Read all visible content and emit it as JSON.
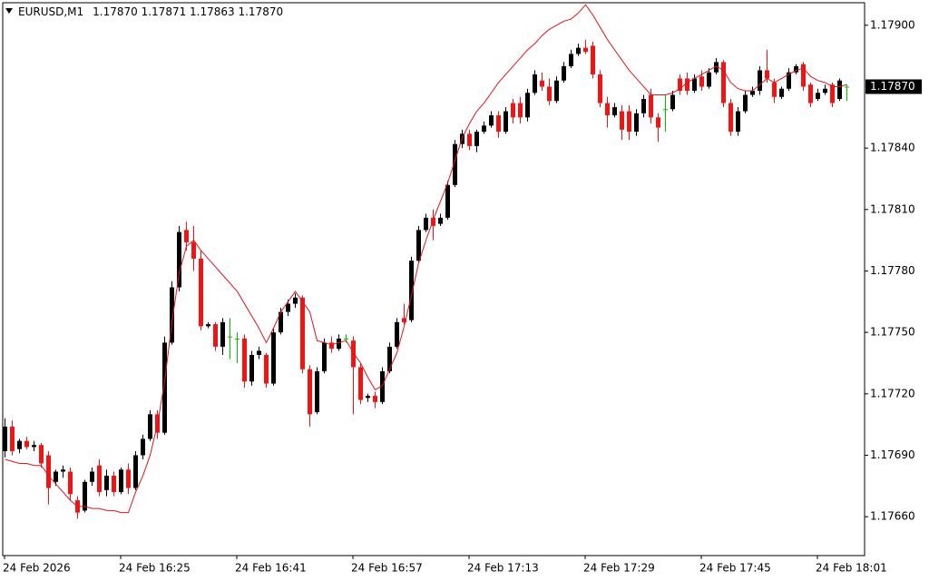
{
  "chart_data": {
    "type": "candlestick",
    "title": "EURUSD,M1",
    "info": "1.17870 1.17871 1.17863 1.17870",
    "categories": [
      "24 Feb 2026",
      null,
      null,
      null,
      null,
      null,
      null,
      null,
      null,
      null,
      null,
      null,
      null,
      null,
      null,
      null,
      "24 Feb 16:25",
      null,
      null,
      null,
      null,
      null,
      null,
      null,
      null,
      null,
      null,
      null,
      null,
      null,
      null,
      null,
      "24 Feb 16:41",
      null,
      null,
      null,
      null,
      null,
      null,
      null,
      null,
      null,
      null,
      null,
      null,
      null,
      null,
      null,
      "24 Feb 16:57",
      null,
      null,
      null,
      null,
      null,
      null,
      null,
      null,
      null,
      null,
      null,
      null,
      null,
      null,
      null,
      "24 Feb 17:13",
      null,
      null,
      null,
      null,
      null,
      null,
      null,
      null,
      null,
      null,
      null,
      null,
      null,
      null,
      null,
      "24 Feb 17:29",
      null,
      null,
      null,
      null,
      null,
      null,
      null,
      null,
      null,
      null,
      null,
      null,
      null,
      null,
      null,
      "24 Feb 17:45",
      null,
      null,
      null,
      null,
      null,
      null,
      null,
      null,
      null,
      null,
      null,
      null,
      null,
      null,
      null,
      "24 Feb 18:01",
      null,
      null,
      null,
      null
    ],
    "open": [
      1.17692,
      1.17704,
      1.17693,
      1.17697,
      1.17694,
      1.17695,
      1.1769,
      1.17677,
      1.17682,
      1.17682,
      1.17668,
      1.17663,
      1.17677,
      1.17685,
      1.17673,
      1.1768,
      1.17672,
      1.17683,
      1.17674,
      1.1769,
      1.17698,
      1.1771,
      1.17701,
      1.17745,
      1.17772,
      1.178,
      1.17794,
      1.17786,
      1.17753,
      1.17754,
      1.17743,
      1.17748,
      1.17747,
      1.17747,
      1.17726,
      1.17739,
      1.17739,
      1.17725,
      1.1775,
      1.1776,
      1.17764,
      1.17767,
      1.17732,
      1.17711,
      1.17731,
      1.17745,
      1.17742,
      1.17747,
      1.17746,
      1.17733,
      1.17718,
      1.17719,
      1.17716,
      1.17731,
      1.17743,
      1.17757,
      1.17756,
      1.17785,
      1.178,
      1.17806,
      1.17803,
      1.17806,
      1.17822,
      1.17842,
      1.17847,
      1.17841,
      1.17848,
      1.17851,
      1.17856,
      1.17848,
      1.17862,
      1.17862,
      1.17855,
      1.17867,
      1.17873,
      1.1787,
      1.17863,
      1.17873,
      1.1788,
      1.17886,
      1.17889,
      1.1789,
      1.17876,
      1.17862,
      1.17856,
      1.17858,
      1.17858,
      1.17848,
      1.17857,
      1.17866,
      1.17855,
      1.17859,
      1.17859,
      1.17874,
      1.17874,
      1.17868,
      1.17875,
      1.1787,
      1.17877,
      1.17882,
      1.17862,
      1.17848,
      1.17858,
      1.17866,
      1.17868,
      1.17878,
      1.17872,
      1.17865,
      1.17869,
      1.17877,
      1.17881,
      1.17871,
      1.17864,
      1.17867,
      1.17871,
      1.17864,
      1.1787
    ],
    "high": [
      1.17708,
      1.17707,
      1.17698,
      1.17699,
      1.17697,
      1.17696,
      1.17692,
      1.17683,
      1.17685,
      1.17684,
      1.1767,
      1.17678,
      1.17684,
      1.17688,
      1.17683,
      1.17682,
      1.17684,
      1.17686,
      1.17692,
      1.177,
      1.17712,
      1.17712,
      1.17748,
      1.17775,
      1.17802,
      1.17804,
      1.17802,
      1.1779,
      1.17755,
      1.17755,
      1.17757,
      1.17757,
      1.1775,
      1.17749,
      1.17741,
      1.17743,
      1.1774,
      1.17752,
      1.17762,
      1.17766,
      1.17769,
      1.17768,
      1.17734,
      1.17733,
      1.17747,
      1.17748,
      1.17749,
      1.17749,
      1.17748,
      1.17735,
      1.1772,
      1.17721,
      1.17733,
      1.17745,
      1.17757,
      1.17764,
      1.17787,
      1.17802,
      1.17808,
      1.1781,
      1.17808,
      1.17824,
      1.17844,
      1.17849,
      1.17849,
      1.17849,
      1.17853,
      1.17858,
      1.17858,
      1.1786,
      1.17864,
      1.17865,
      1.17869,
      1.17878,
      1.17877,
      1.17874,
      1.17875,
      1.17882,
      1.17888,
      1.17891,
      1.17893,
      1.17892,
      1.17878,
      1.17865,
      1.17862,
      1.17861,
      1.17861,
      1.17859,
      1.17866,
      1.17869,
      1.17857,
      1.17866,
      1.17868,
      1.17876,
      1.17877,
      1.17876,
      1.17878,
      1.17879,
      1.17884,
      1.17883,
      1.17864,
      1.1786,
      1.17868,
      1.1787,
      1.1788,
      1.17888,
      1.17874,
      1.1787,
      1.17879,
      1.17881,
      1.17882,
      1.17872,
      1.17869,
      1.17871,
      1.17872,
      1.17874,
      1.17871
    ],
    "low": [
      1.17689,
      1.1769,
      1.17691,
      1.17693,
      1.17692,
      1.17684,
      1.17666,
      1.17675,
      1.17679,
      1.17668,
      1.17659,
      1.17662,
      1.17675,
      1.1767,
      1.1767,
      1.1767,
      1.17671,
      1.17671,
      1.17673,
      1.17688,
      1.17697,
      1.17698,
      1.177,
      1.17744,
      1.1777,
      1.1779,
      1.1778,
      1.17751,
      1.17752,
      1.17741,
      1.17739,
      1.17737,
      1.17735,
      1.17723,
      1.17724,
      1.17737,
      1.17723,
      1.17724,
      1.17749,
      1.17758,
      1.17762,
      1.1773,
      1.17704,
      1.1771,
      1.1773,
      1.1774,
      1.17741,
      1.17745,
      1.1771,
      1.17715,
      1.17716,
      1.17713,
      1.17715,
      1.1773,
      1.17742,
      1.17754,
      1.17755,
      1.17784,
      1.17799,
      1.17795,
      1.17802,
      1.17805,
      1.17821,
      1.1784,
      1.17839,
      1.17838,
      1.17847,
      1.1785,
      1.17845,
      1.17847,
      1.17852,
      1.17852,
      1.17853,
      1.17866,
      1.17868,
      1.17861,
      1.17862,
      1.17872,
      1.17879,
      1.17885,
      1.17886,
      1.17874,
      1.1786,
      1.1785,
      1.17855,
      1.17844,
      1.17844,
      1.17846,
      1.17855,
      1.17852,
      1.17843,
      1.17848,
      1.17858,
      1.17866,
      1.17866,
      1.17867,
      1.17868,
      1.17869,
      1.17876,
      1.1786,
      1.17846,
      1.17846,
      1.17857,
      1.17865,
      1.17866,
      1.17872,
      1.17862,
      1.17864,
      1.17868,
      1.17876,
      1.17868,
      1.1786,
      1.17863,
      1.17866,
      1.1786,
      1.17863,
      1.17863
    ],
    "close": [
      1.17704,
      1.17692,
      1.17697,
      1.17694,
      1.17695,
      1.17686,
      1.17674,
      1.17682,
      1.17683,
      1.17671,
      1.17662,
      1.17677,
      1.17682,
      1.17672,
      1.1768,
      1.17672,
      1.17683,
      1.17674,
      1.1769,
      1.17698,
      1.1771,
      1.17701,
      1.17745,
      1.17772,
      1.17799,
      1.17794,
      1.17786,
      1.17753,
      1.17754,
      1.17743,
      1.17755,
      1.17748,
      1.17747,
      1.17726,
      1.17739,
      1.17741,
      1.17725,
      1.1775,
      1.1776,
      1.17764,
      1.17767,
      1.17732,
      1.1771,
      1.17731,
      1.17745,
      1.17742,
      1.17747,
      1.17747,
      1.17733,
      1.17717,
      1.17719,
      1.17716,
      1.17731,
      1.17743,
      1.17755,
      1.17755,
      1.17785,
      1.178,
      1.17806,
      1.17802,
      1.17806,
      1.17822,
      1.17842,
      1.17847,
      1.17841,
      1.17848,
      1.17851,
      1.17856,
      1.17848,
      1.17858,
      1.17855,
      1.17855,
      1.17867,
      1.17876,
      1.1787,
      1.17863,
      1.17873,
      1.1788,
      1.17886,
      1.17889,
      1.17887,
      1.17876,
      1.17862,
      1.17856,
      1.1786,
      1.17849,
      1.17848,
      1.17857,
      1.17864,
      1.17855,
      1.1785,
      1.17859,
      1.17866,
      1.17868,
      1.17868,
      1.17874,
      1.1787,
      1.17877,
      1.17882,
      1.17862,
      1.17848,
      1.17858,
      1.17866,
      1.17868,
      1.17878,
      1.17874,
      1.17865,
      1.17869,
      1.17877,
      1.1788,
      1.1787,
      1.17862,
      1.17867,
      1.17869,
      1.17862,
      1.17873,
      1.1787
    ],
    "ma": {
      "color": "#e3141c",
      "values": [
        1.17688,
        1.17687,
        1.17686,
        1.17686,
        1.17685,
        1.17685,
        1.1768,
        1.17676,
        1.17672,
        1.17668,
        1.17665,
        1.17665,
        1.17664,
        1.17664,
        1.17663,
        1.17663,
        1.17662,
        1.17662,
        1.17672,
        1.1768,
        1.1769,
        1.17705,
        1.17726,
        1.17755,
        1.17779,
        1.17792,
        1.17795,
        1.1779,
        1.17786,
        1.17782,
        1.17778,
        1.17774,
        1.1777,
        1.17764,
        1.17758,
        1.17752,
        1.17745,
        1.17752,
        1.1776,
        1.17765,
        1.1777,
        1.17765,
        1.1776,
        1.17746,
        1.17745,
        1.17744,
        1.17745,
        1.17746,
        1.1774,
        1.17735,
        1.17728,
        1.17722,
        1.17724,
        1.17732,
        1.1774,
        1.17753,
        1.17768,
        1.17784,
        1.17795,
        1.17805,
        1.17814,
        1.17823,
        1.17834,
        1.17845,
        1.17852,
        1.17858,
        1.17862,
        1.17867,
        1.17872,
        1.17876,
        1.1788,
        1.17884,
        1.17888,
        1.17891,
        1.17895,
        1.17898,
        1.179,
        1.17902,
        1.17903,
        1.17906,
        1.1791,
        1.17905,
        1.17899,
        1.17893,
        1.17888,
        1.17883,
        1.17878,
        1.17874,
        1.1787,
        1.17866,
        1.17866,
        1.17866,
        1.17867,
        1.17869,
        1.17872,
        1.17874,
        1.17876,
        1.17878,
        1.1788,
        1.17878,
        1.17872,
        1.17869,
        1.17868,
        1.17868,
        1.17871,
        1.17874,
        1.17872,
        1.17874,
        1.17876,
        1.17878,
        1.17879,
        1.17875,
        1.17873,
        1.17872,
        1.1787,
        1.1787,
        1.17871
      ]
    },
    "up_color": "#000000",
    "down_color": "#f01414",
    "doji_color": "#00c000",
    "ylim": [
      1.17641,
      1.17911
    ],
    "yticks": [
      {
        "value": 1.1766,
        "label": "1.17660"
      },
      {
        "value": 1.1769,
        "label": "1.17690"
      },
      {
        "value": 1.1772,
        "label": "1.17720"
      },
      {
        "value": 1.1775,
        "label": "1.17750"
      },
      {
        "value": 1.1778,
        "label": "1.17780"
      },
      {
        "value": 1.1781,
        "label": "1.17810"
      },
      {
        "value": 1.1784,
        "label": "1.17840"
      },
      {
        "value": 1.179,
        "label": "1.17900"
      }
    ],
    "last_price": {
      "value": 1.1787,
      "label": "1.17870"
    },
    "grid": false
  }
}
